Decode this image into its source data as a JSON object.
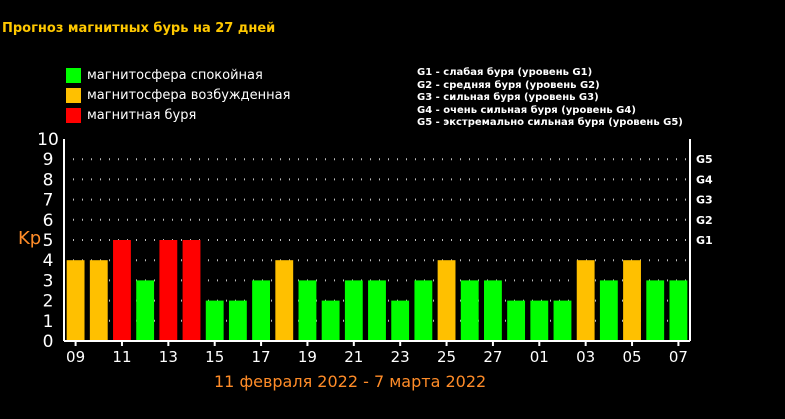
{
  "title": "Прогноз магнитных бурь на 27 дней",
  "legend": [
    {
      "label": "магнитосфера спокойная",
      "color": "#00ff00"
    },
    {
      "label": "магнитосфера возбужденная",
      "color": "#ffc000"
    },
    {
      "label": "магнитная буря",
      "color": "#ff0000"
    }
  ],
  "storm_levels": [
    "G1 - слабая буря (уровень G1)",
    "G2 - средняя буря (уровень G2)",
    "G3 - сильная буря (уровень G3)",
    "G4 - очень сильная буря (уровень G4)",
    "G5 - экстремально сильная буря (уровень G5)"
  ],
  "chart_data": {
    "type": "bar",
    "ylabel": "Kp",
    "xlabel": "11 февраля 2022 - 7 марта 2022",
    "ylim": [
      0,
      10
    ],
    "yticks": [
      "0",
      "1",
      "2",
      "3",
      "4",
      "5",
      "6",
      "7",
      "8",
      "9",
      "10"
    ],
    "right_ticks": [
      {
        "label": "G1",
        "value": 5
      },
      {
        "label": "G2",
        "value": 6
      },
      {
        "label": "G3",
        "value": 7
      },
      {
        "label": "G4",
        "value": 8
      },
      {
        "label": "G5",
        "value": 9
      }
    ],
    "grid": true,
    "x_tick_labels": [
      "09",
      "11",
      "13",
      "15",
      "17",
      "19",
      "21",
      "23",
      "25",
      "27",
      "01",
      "03",
      "05",
      "07"
    ],
    "values": [
      4,
      4,
      5,
      3,
      5,
      5,
      2,
      2,
      3,
      4,
      3,
      2,
      3,
      3,
      2,
      3,
      4,
      3,
      3,
      2,
      2,
      2,
      4,
      3,
      4,
      3,
      3
    ],
    "colors": {
      "quiet": "#00ff00",
      "active": "#ffc000",
      "storm": "#ff0000"
    }
  }
}
